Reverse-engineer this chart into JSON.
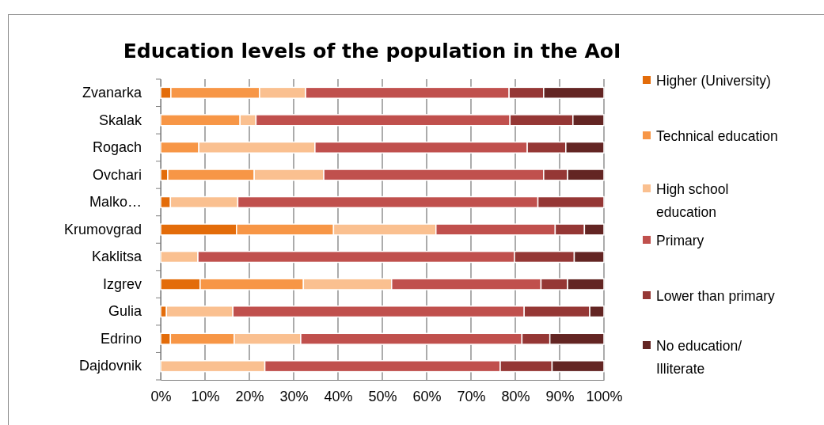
{
  "chart_data": {
    "type": "bar",
    "orientation": "horizontal",
    "stacked": true,
    "title": "Education levels of the population in the AoI",
    "categories": [
      "Zvanarka",
      "Skalak",
      "Rogach",
      "Ovchari",
      "Malko…",
      "Krumovgrad",
      "Kaklitsa",
      "Izgrev",
      "Gulia",
      "Edrino",
      "Dajdovnik"
    ],
    "series": [
      {
        "name": "Higher (University)",
        "color": "#e36c0a",
        "values": [
          2.3,
          0,
          0,
          1.6,
          2.2,
          17.1,
          0,
          8.9,
          1.3,
          2.2,
          0
        ]
      },
      {
        "name": "Technical education",
        "color": "#f79646",
        "values": [
          20.0,
          17.9,
          8.6,
          19.5,
          0,
          21.9,
          0,
          23.3,
          0,
          14.4,
          0
        ]
      },
      {
        "name": "High school education",
        "color": "#fac090",
        "values": [
          10.4,
          3.6,
          26.2,
          15.7,
          15.2,
          23.1,
          8.4,
          19.9,
          15.0,
          15.0,
          23.5
        ]
      },
      {
        "name": "Primary",
        "color": "#c0504d",
        "values": [
          45.9,
          57.3,
          47.9,
          49.6,
          67.7,
          26.9,
          71.4,
          33.7,
          65.7,
          49.9,
          53.1
        ]
      },
      {
        "name": "Lower than primary",
        "color": "#953735",
        "values": [
          7.8,
          14.2,
          8.7,
          5.4,
          14.9,
          6.6,
          13.5,
          6.0,
          14.8,
          6.3,
          11.7
        ]
      },
      {
        "name": "No education/ Illiterate",
        "color": "#632523",
        "values": [
          13.6,
          7.0,
          8.6,
          8.2,
          0,
          4.4,
          6.7,
          8.2,
          3.2,
          12.2,
          11.7
        ]
      }
    ],
    "xlim": [
      0,
      100
    ],
    "xticks": [
      {
        "value": 0,
        "label": "0%"
      },
      {
        "value": 10,
        "label": "10%"
      },
      {
        "value": 20,
        "label": "20%"
      },
      {
        "value": 30,
        "label": "30%"
      },
      {
        "value": 40,
        "label": "40%"
      },
      {
        "value": 50,
        "label": "50%"
      },
      {
        "value": 60,
        "label": "60%"
      },
      {
        "value": 70,
        "label": "70%"
      },
      {
        "value": 80,
        "label": "80%"
      },
      {
        "value": 90,
        "label": "90%"
      },
      {
        "value": 100,
        "label": "100%"
      }
    ],
    "grid": "x",
    "legend": "right"
  }
}
